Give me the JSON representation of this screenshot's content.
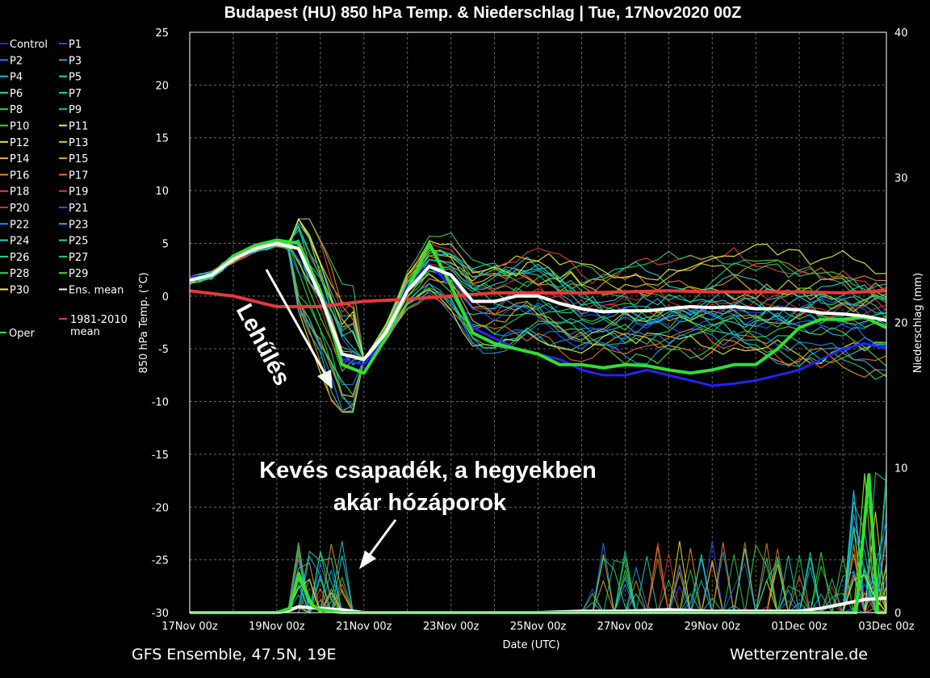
{
  "chart_data": {
    "type": "line",
    "title": "Budapest  (HU)  850 hPa Temp. & Niederschlag | Tue, 17Nov2020 00Z",
    "xlabel": "Date (UTC)",
    "ylabel": "850 hPa Temp. (°C)",
    "y2label": "Niederschlag (mm)",
    "x_ticks": [
      "17Nov 00z",
      "19Nov 00z",
      "21Nov 00z",
      "23Nov 00z",
      "25Nov 00z",
      "27Nov 00z",
      "29Nov 00z",
      "01Dec 00z",
      "03Dec 00z"
    ],
    "x_range_days": [
      0,
      16
    ],
    "ylim": [
      -30,
      25
    ],
    "y_ticks": [
      25,
      20,
      15,
      10,
      5,
      0,
      -5,
      -10,
      -15,
      -20,
      -25,
      -30
    ],
    "y2lim": [
      0,
      40
    ],
    "y2_ticks": [
      40,
      30,
      20,
      10,
      0
    ],
    "grid": true,
    "legend_position": "left",
    "legend": [
      {
        "label": "Control",
        "color": "#2222ff"
      },
      {
        "label": "P1",
        "color": "#1c50ff"
      },
      {
        "label": "P2",
        "color": "#1a7eff"
      },
      {
        "label": "P3",
        "color": "#16a0f0"
      },
      {
        "label": "P4",
        "color": "#12c0e0"
      },
      {
        "label": "P5",
        "color": "#12d8d8"
      },
      {
        "label": "P6",
        "color": "#12d8b0"
      },
      {
        "label": "P7",
        "color": "#12d890"
      },
      {
        "label": "P8",
        "color": "#18d070"
      },
      {
        "label": "P9",
        "color": "#20d050"
      },
      {
        "label": "P10",
        "color": "#40e030"
      },
      {
        "label": "P11",
        "color": "#f0f020"
      },
      {
        "label": "P12",
        "color": "#e8e020"
      },
      {
        "label": "P13",
        "color": "#e0d020"
      },
      {
        "label": "P14",
        "color": "#e8b820"
      },
      {
        "label": "P15",
        "color": "#e8a020"
      },
      {
        "label": "P16",
        "color": "#e88820"
      },
      {
        "label": "P17",
        "color": "#e87020"
      },
      {
        "label": "P18",
        "color": "#e04040"
      },
      {
        "label": "P19",
        "color": "#e03030"
      },
      {
        "label": "P20",
        "color": "#e02828"
      },
      {
        "label": "P21",
        "color": "#1860f0"
      },
      {
        "label": "P22",
        "color": "#1890f0"
      },
      {
        "label": "P23",
        "color": "#18b8e8"
      },
      {
        "label": "P24",
        "color": "#18d0d0"
      },
      {
        "label": "P25",
        "color": "#18d8b8"
      },
      {
        "label": "P26",
        "color": "#18d898"
      },
      {
        "label": "P27",
        "color": "#18d070"
      },
      {
        "label": "P28",
        "color": "#30d050"
      },
      {
        "label": "P29",
        "color": "#50d830"
      },
      {
        "label": "P30",
        "color": "#f0f040"
      },
      {
        "label": "Ens. mean",
        "color": "#ffffff"
      },
      {
        "label": "1981-2010 mean",
        "color": "#e83838"
      },
      {
        "label": "Oper",
        "color": "#40e040"
      }
    ],
    "series": [
      {
        "key": "ens_mean",
        "color": "#ffffff",
        "width": 4,
        "x": [
          0,
          0.5,
          1,
          1.5,
          2,
          2.5,
          3,
          3.5,
          4,
          4.5,
          5,
          5.5,
          6,
          6.5,
          7,
          7.5,
          8,
          8.5,
          9,
          9.5,
          10,
          10.5,
          11,
          11.5,
          12,
          12.5,
          13,
          13.5,
          14,
          14.5,
          15,
          15.5,
          16
        ],
        "values": [
          1.5,
          2,
          3.5,
          4.5,
          5,
          4.5,
          0,
          -5.5,
          -6,
          -3.5,
          0.5,
          2.8,
          2,
          -0.5,
          -0.5,
          0,
          0,
          -0.7,
          -1.2,
          -1.5,
          -1.4,
          -1.4,
          -1.2,
          -1,
          -1.1,
          -1,
          -1.2,
          -1.2,
          -1.3,
          -1.6,
          -1.7,
          -1.9,
          -2.3
        ]
      },
      {
        "key": "oper",
        "color": "#30e030",
        "width": 4,
        "x": [
          0,
          0.5,
          1,
          1.5,
          2,
          2.5,
          3,
          3.5,
          4,
          4.5,
          5,
          5.5,
          6,
          6.5,
          7,
          7.5,
          8,
          8.5,
          9,
          9.5,
          10,
          10.5,
          11,
          11.5,
          12,
          12.5,
          13,
          13.5,
          14,
          14.5,
          15,
          15.5,
          16
        ],
        "values": [
          1.5,
          2,
          3.8,
          4.8,
          5.3,
          5,
          0.5,
          -6.5,
          -7.3,
          -4,
          0.5,
          5,
          1,
          -3.5,
          -4.5,
          -5,
          -5.5,
          -6.5,
          -6.5,
          -6.8,
          -6.5,
          -6.6,
          -7,
          -7.3,
          -7,
          -6.5,
          -6.5,
          -5,
          -3,
          -2.2,
          -2.2,
          -2,
          -3
        ]
      },
      {
        "key": "control",
        "color": "#2222ff",
        "width": 3,
        "x": [
          0,
          0.5,
          1,
          1.5,
          2,
          2.5,
          3,
          3.5,
          4,
          4.5,
          5,
          5.5,
          6,
          6.5,
          7,
          7.5,
          8,
          8.5,
          9,
          9.5,
          10,
          10.5,
          11,
          11.5,
          12,
          12.5,
          13,
          13.5,
          14,
          14.5,
          15,
          15.5,
          16
        ],
        "values": [
          1.8,
          2,
          3.5,
          4.5,
          5,
          4.5,
          0,
          -6,
          -6.5,
          -4,
          1,
          3,
          1,
          -3,
          -4,
          -5,
          -5.5,
          -6,
          -7,
          -7.5,
          -7.5,
          -7,
          -7.5,
          -8,
          -8.5,
          -8.3,
          -8,
          -7.5,
          -7,
          -6,
          -5,
          -4.5,
          -5
        ]
      },
      {
        "key": "clim_1981_2010",
        "color": "#e83838",
        "width": 4,
        "x": [
          0,
          1,
          2,
          3,
          4,
          5,
          6,
          7,
          8,
          9,
          10,
          11,
          12,
          13,
          14,
          15,
          16
        ],
        "values": [
          0.5,
          0,
          -1,
          -1,
          -0.5,
          -0.3,
          0,
          0.3,
          0.3,
          0.3,
          0.4,
          0.5,
          0.4,
          0.4,
          0.4,
          0.3,
          0.5
        ]
      }
    ],
    "precip_series": [
      {
        "key": "ens_mean_precip",
        "color": "#ffffff",
        "width": 4,
        "x": [
          0,
          2,
          2.2,
          2.5,
          3,
          3.5,
          4,
          5,
          6,
          7,
          8,
          9,
          10,
          11,
          12,
          13,
          14,
          14.5,
          15,
          15.5,
          16
        ],
        "values": [
          0,
          0,
          0.1,
          0.4,
          0.3,
          0.2,
          0,
          0,
          0,
          0,
          0,
          0.1,
          0.1,
          0.2,
          0.1,
          0.1,
          0.1,
          0.3,
          0.6,
          0.9,
          1
        ]
      },
      {
        "key": "oper_precip",
        "color": "#30e030",
        "width": 4,
        "x": [
          0,
          2,
          2.3,
          2.5,
          2.8,
          3,
          3.5,
          4,
          8,
          10,
          12,
          14,
          14.5,
          15,
          15.3,
          15.6,
          15.8,
          16
        ],
        "values": [
          0,
          0,
          0.3,
          2.7,
          0.5,
          0.2,
          0,
          0,
          0,
          0,
          0,
          0,
          0,
          0,
          0,
          9.5,
          0,
          0
        ]
      }
    ]
  },
  "annotations": {
    "cooling": "Lehűlés",
    "precip_line1": "Kevés csapadék, a hegyekben",
    "precip_line2": "akár hózáporok"
  },
  "footer": {
    "left": "GFS Ensemble, 47.5N, 19E",
    "right": "Wetterzentrale.de"
  }
}
